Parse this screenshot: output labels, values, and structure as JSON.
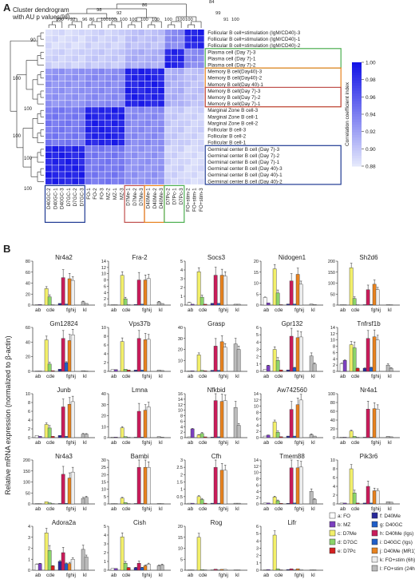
{
  "panel_a": {
    "label": "A",
    "dendrogram_caption": [
      "Cluster dendrogram",
      "with AU p values(%)"
    ],
    "row_labels": [
      "Follicular B cell+stimulation (IgM/CD40)-3",
      "Follicular B cell+stimulation (IgM/CD40)-1",
      "Follicular B cell+stimulation (IgM/CD40)-2",
      "Plasma cell (Day 7)-3",
      "Plasma cell (Day 7)-1",
      "Plasma cell (Day 7)-2",
      "Memory B cell(Day40)-3",
      "Memory B cell(Day40)-2",
      "Memory B cell(Day 40)-1",
      "Memory B cell(Day 7)-3",
      "Memory B cell(Day 7)-2",
      "Memory B cell(Day 7)-1",
      "Marginal Zone B cell-3",
      "Marginal Zone B cell-1",
      "Marginal Zone B cell-2",
      "Follicular B cell-3",
      "Follicular B cell-2",
      "Follicular B cell-1",
      "Germinal center B cell (Day 7)-3",
      "Germinal center B cell (Day 7)-2",
      "Germinal center B cell (Day 7)-1",
      "Germinal center B cell (Day 40)-3",
      "Germinal center B cell (Day 40)-1",
      "Germinal center B cell (Day 40)-2"
    ],
    "col_labels": [
      "D40GC-2",
      "D40GC-1",
      "D40GC-3",
      "D7GC-1",
      "D7GC-2",
      "D7GC-3",
      "FO-1",
      "FO-2",
      "FO-3",
      "MZ-2",
      "MZ-1",
      "MZ-3",
      "D7Me-1",
      "D7Me-2",
      "D7Me-3",
      "D40Me-1",
      "D40Me-2",
      "D40Me-3",
      "D7Pc-2",
      "D7Pc-1",
      "D7Pc-3",
      "FO+stim-2",
      "FO+stim-1",
      "FO+stim-3"
    ],
    "top_numbers": [
      "86",
      "98",
      "92",
      "100",
      "92",
      "96",
      "86",
      "100",
      "100",
      "100",
      "100",
      "100",
      "100",
      "100",
      "100",
      "100",
      "84",
      "99",
      "91",
      "100"
    ],
    "left_numbers": [
      "90",
      "100",
      "100",
      "100",
      "100",
      "100"
    ],
    "colorbar": {
      "title": "Correlation coefficient index",
      "ticks": [
        "1.00",
        "0.98",
        "0.96",
        "0.94",
        "0.92",
        "0.90",
        "0.88"
      ],
      "min": 0.88,
      "max": 1.0
    },
    "box_colors": {
      "memory": "#c0504d",
      "plasma": "#4caf50",
      "germinal": "#1f3a93",
      "orange": "#e8821e"
    }
  },
  "panel_b": {
    "label": "B",
    "ylabel": "Relative mRNA expression (normalized to β-actin)",
    "group_letters": [
      "ab",
      "cde",
      "fghij",
      "kl"
    ],
    "sample_colors": [
      "#ffffff",
      "#7b3fbf",
      "#f2ef6a",
      "#8bd46a",
      "#d42020",
      "#2a2a9a",
      "#c81c5a",
      "#1f5ec8",
      "#e8821e",
      "#eeeeee",
      "#bbbbbb"
    ],
    "legend": [
      {
        "key": "a: FO",
        "color": "#ffffff"
      },
      {
        "key": "b: MZ",
        "color": "#7b3fbf"
      },
      {
        "key": "c: D7Me",
        "color": "#f2ef6a"
      },
      {
        "key": "d: D7GC",
        "color": "#8bd46a"
      },
      {
        "key": "e: D7Pc",
        "color": "#d42020"
      },
      {
        "key": "f: D40Me",
        "color": "#2a2a9a"
      },
      {
        "key": "g: D40GC",
        "color": "#1f5ec8"
      },
      {
        "key": "h: D40Me (Igs)",
        "color": "#c81c5a"
      },
      {
        "key": "i: D40GC (Igs)",
        "color": "#1f5ec8"
      },
      {
        "key": "j: D40Me (MR1)",
        "color": "#e8821e"
      },
      {
        "key": "k: FO+stim (6h)",
        "color": "#eeeeee"
      },
      {
        "key": "l: FO+stim (24h)",
        "color": "#bbbbbb"
      }
    ]
  },
  "chart_data": [
    {
      "type": "bar",
      "title": "Nr4a2",
      "ylim": [
        0,
        80
      ],
      "yticks": [
        "0",
        "20",
        "40",
        "60",
        "80"
      ],
      "values": [
        0.5,
        1,
        30,
        15,
        0.5,
        3,
        50,
        2,
        48,
        45,
        6,
        3
      ]
    },
    {
      "type": "bar",
      "title": "Fra-2",
      "ylim": [
        0,
        14
      ],
      "yticks": [
        "0",
        "2",
        "4",
        "6",
        "8",
        "10",
        "12",
        "14"
      ],
      "values": [
        0.1,
        0.1,
        9.5,
        2,
        0.1,
        0.2,
        8,
        0.3,
        8,
        8.5,
        1,
        0.5
      ]
    },
    {
      "type": "bar",
      "title": "Socs3",
      "ylim": [
        0,
        5
      ],
      "yticks": [
        "0",
        "1",
        "2",
        "3",
        "4",
        "5"
      ],
      "values": [
        0.3,
        0.1,
        3.8,
        0.9,
        0.1,
        0.2,
        3.4,
        0.2,
        3.4,
        3.3,
        0.1,
        0.1
      ]
    },
    {
      "type": "bar",
      "title": "Nidogen1",
      "ylim": [
        0,
        20
      ],
      "yticks": [
        "0",
        "5",
        "10",
        "15",
        "20"
      ],
      "values": [
        3.5,
        1,
        16.5,
        5.5,
        0.2,
        0.5,
        11,
        0.5,
        14,
        9.5,
        0.5,
        0.3
      ]
    },
    {
      "type": "bar",
      "title": "Sh2d6",
      "ylim": [
        0,
        200
      ],
      "yticks": [
        "0",
        "50",
        "100",
        "150",
        "200"
      ],
      "values": [
        1,
        1,
        170,
        30,
        1,
        2,
        70,
        3,
        95,
        70,
        2,
        1
      ]
    },
    {
      "type": "bar",
      "title": "Gm12824",
      "ylim": [
        0,
        60
      ],
      "yticks": [
        "0",
        "20",
        "40",
        "60"
      ],
      "values": [
        0.3,
        0.5,
        43,
        10,
        1,
        3,
        45,
        12,
        42,
        50,
        1,
        0.3
      ]
    },
    {
      "type": "bar",
      "title": "Vps37b",
      "ylim": [
        0,
        10
      ],
      "yticks": [
        "0",
        "2",
        "4",
        "6",
        "8",
        "10"
      ],
      "values": [
        0.4,
        0.4,
        6.8,
        0.5,
        0.3,
        0.3,
        7.5,
        0.3,
        7.2,
        7.3,
        0.3,
        0.2
      ]
    },
    {
      "type": "bar",
      "title": "Grasp",
      "ylim": [
        0,
        40
      ],
      "yticks": [
        "0",
        "10",
        "20",
        "30",
        "40"
      ],
      "values": [
        0.5,
        0.5,
        15,
        1,
        0.5,
        1,
        23,
        1,
        27,
        22,
        25,
        20
      ]
    },
    {
      "type": "bar",
      "title": "Gpr132",
      "ylim": [
        0,
        6
      ],
      "yticks": [
        "0",
        "1",
        "2",
        "3",
        "4",
        "5",
        "6"
      ],
      "values": [
        0.3,
        0.8,
        3,
        1.5,
        0.2,
        0.2,
        4.8,
        0.5,
        4.6,
        4.7,
        2.1,
        1
      ]
    },
    {
      "type": "bar",
      "title": "Tnfrsf1b",
      "ylim": [
        0,
        14
      ],
      "yticks": [
        "0",
        "2",
        "4",
        "6",
        "8",
        "10",
        "12",
        "14"
      ],
      "values": [
        2.5,
        3.5,
        8.5,
        7.5,
        1,
        1,
        10.5,
        1.2,
        11,
        10,
        2,
        1
      ]
    },
    {
      "type": "bar",
      "title": "Junb",
      "ylim": [
        0,
        10
      ],
      "yticks": [
        "0",
        "2",
        "4",
        "6",
        "8",
        "10"
      ],
      "values": [
        0.5,
        0.3,
        3,
        2.2,
        0.3,
        0.5,
        7,
        0.3,
        7.6,
        8.2,
        0.8,
        0.8
      ]
    },
    {
      "type": "bar",
      "title": "Lmna",
      "ylim": [
        0,
        40
      ],
      "yticks": [
        "0",
        "10",
        "20",
        "30",
        "40"
      ],
      "values": [
        0.5,
        0.5,
        9,
        1,
        0.3,
        0.4,
        24,
        0.5,
        25,
        28,
        1,
        0.5
      ]
    },
    {
      "type": "bar",
      "title": "Nfkbid",
      "ylim": [
        0,
        16
      ],
      "yticks": [
        "0",
        "2",
        "4",
        "6",
        "8",
        "10",
        "12",
        "14",
        "16"
      ],
      "values": [
        0.3,
        3.2,
        1,
        1.5,
        0.3,
        0.2,
        13.5,
        0.3,
        13.2,
        13.5,
        11,
        4.5
      ]
    },
    {
      "type": "bar",
      "title": "Aw742560",
      "ylim": [
        0,
        14
      ],
      "yticks": [
        "0",
        "2",
        "4",
        "6",
        "8",
        "10",
        "12",
        "14"
      ],
      "values": [
        0.5,
        0.8,
        5,
        1.7,
        0.3,
        0.5,
        9,
        0.5,
        10.5,
        12,
        1,
        0.5
      ]
    },
    {
      "type": "bar",
      "title": "Nr4a1",
      "ylim": [
        0,
        100
      ],
      "yticks": [
        "0",
        "20",
        "40",
        "60",
        "80",
        "100"
      ],
      "values": [
        1,
        1,
        15,
        3,
        0.5,
        1,
        65,
        1,
        66,
        65,
        3,
        2
      ]
    },
    {
      "type": "bar",
      "title": "Nr4a3",
      "ylim": [
        0,
        200
      ],
      "yticks": [
        "0",
        "50",
        "100",
        "150",
        "200"
      ],
      "values": [
        1,
        1,
        10,
        5,
        1,
        2,
        135,
        3,
        118,
        145,
        25,
        30
      ]
    },
    {
      "type": "bar",
      "title": "Bambi",
      "ylim": [
        0,
        30
      ],
      "yticks": [
        "0",
        "5",
        "10",
        "15",
        "20",
        "25",
        "30"
      ],
      "values": [
        0.2,
        0.2,
        4,
        1,
        0.2,
        0.3,
        25,
        0.3,
        25,
        25,
        0.3,
        0.2
      ]
    },
    {
      "type": "bar",
      "title": "Cfh",
      "ylim": [
        0,
        3
      ],
      "yticks": [
        "0",
        "0.5",
        "1",
        "1.5",
        "2",
        "2.5",
        "3"
      ],
      "values": [
        0.05,
        0.05,
        0.5,
        0.3,
        0.05,
        0.05,
        2.5,
        0.05,
        2.3,
        2.3,
        0.05,
        0.05
      ]
    },
    {
      "type": "bar",
      "title": "Tmem88",
      "ylim": [
        0,
        14
      ],
      "yticks": [
        "0",
        "2",
        "4",
        "6",
        "8",
        "10",
        "12",
        "14"
      ],
      "values": [
        0.3,
        0.3,
        2.2,
        1,
        0.2,
        0.2,
        11.5,
        0.3,
        11.5,
        11.8,
        4,
        1.5
      ]
    },
    {
      "type": "bar",
      "title": "Pik3r6",
      "ylim": [
        0,
        10
      ],
      "yticks": [
        "0",
        "2",
        "4",
        "6",
        "8",
        "10"
      ],
      "values": [
        0.2,
        0.2,
        8,
        2.5,
        0.2,
        0.2,
        4,
        0.2,
        3,
        3,
        0.5,
        0.4
      ]
    },
    {
      "type": "bar",
      "title": "Adora2a",
      "ylim": [
        0,
        4
      ],
      "yticks": [
        "0",
        "1",
        "2",
        "3",
        "4"
      ],
      "values": [
        0.55,
        0.6,
        3.4,
        1.8,
        0.4,
        0.8,
        1.6,
        0.6,
        0.6,
        1.0,
        1.9,
        1.2
      ]
    },
    {
      "type": "bar",
      "title": "Cish",
      "ylim": [
        0,
        5
      ],
      "yticks": [
        "0",
        "1",
        "2",
        "3",
        "4",
        "5"
      ],
      "values": [
        0.2,
        0.2,
        3.8,
        0.8,
        0.3,
        0.3,
        0.8,
        0.3,
        0.5,
        0.7,
        0.5,
        0.6
      ]
    },
    {
      "type": "bar",
      "title": "Rog",
      "ylim": [
        0,
        20
      ],
      "yticks": [
        "0",
        "5",
        "10",
        "15",
        "20"
      ],
      "values": [
        0.1,
        0.1,
        15,
        0.3,
        0.1,
        0.1,
        0.5,
        0.1,
        0.4,
        0.4,
        0.1,
        0.1
      ]
    },
    {
      "type": "bar",
      "title": "Lifr",
      "ylim": [
        0,
        6
      ],
      "yticks": [
        "0",
        "1",
        "2",
        "3",
        "4",
        "5",
        "6"
      ],
      "values": [
        0.05,
        0.1,
        4.8,
        0.2,
        0.05,
        0.1,
        0.2,
        0.05,
        0.2,
        0.1,
        0.05,
        0.05
      ]
    }
  ]
}
